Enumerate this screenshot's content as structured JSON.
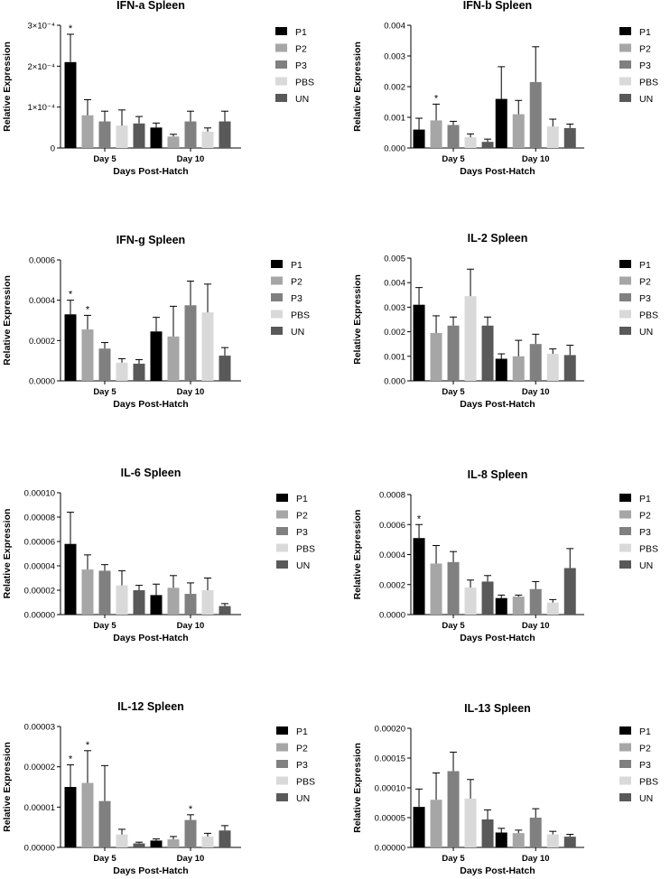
{
  "chart_data": [
    {
      "type": "bar",
      "title": "IFN-a Spleen",
      "xlabel": "Days Post-Hatch",
      "ylabel": "Relative Expression",
      "categories": [
        "Day 5",
        "Day 10"
      ],
      "ylim": [
        0,
        0.0003
      ],
      "ytick_values": [
        0,
        0.0001,
        0.0002,
        0.0003
      ],
      "ytick_labels": [
        "0",
        "1×10⁻⁴",
        "2×10⁻⁴",
        "3×10⁻⁴"
      ],
      "series": [
        {
          "name": "P1",
          "values": [
            0.00021,
            5e-05
          ],
          "errors": [
            6.8e-05,
            1.1e-05
          ]
        },
        {
          "name": "P2",
          "values": [
            8e-05,
            2.8e-05
          ],
          "errors": [
            3.8e-05,
            5.5e-06
          ]
        },
        {
          "name": "P3",
          "values": [
            6.5e-05,
            6.5e-05
          ],
          "errors": [
            2.5e-05,
            2.5e-05
          ]
        },
        {
          "name": "PBS",
          "values": [
            5.5e-05,
            4e-05
          ],
          "errors": [
            3.8e-05,
            9e-06
          ]
        },
        {
          "name": "UN",
          "values": [
            6e-05,
            6.5e-05
          ],
          "errors": [
            1.7e-05,
            2.5e-05
          ]
        }
      ],
      "annotations": [
        {
          "series": "P1",
          "category": "Day 5",
          "text": "*"
        }
      ]
    },
    {
      "type": "bar",
      "title": "IFN-b Spleen",
      "xlabel": "Days Post-Hatch",
      "ylabel": "Relative Expression",
      "categories": [
        "Day 5",
        "Day 10"
      ],
      "ylim": [
        0,
        0.004
      ],
      "ytick_values": [
        0,
        0.001,
        0.002,
        0.003,
        0.004
      ],
      "ytick_labels": [
        "0.000",
        "0.001",
        "0.002",
        "0.003",
        "0.004"
      ],
      "series": [
        {
          "name": "P1",
          "values": [
            0.0006,
            0.0016
          ],
          "errors": [
            0.00037,
            0.00105
          ]
        },
        {
          "name": "P2",
          "values": [
            0.0009,
            0.0011
          ],
          "errors": [
            0.00053,
            0.00045
          ]
        },
        {
          "name": "P3",
          "values": [
            0.00075,
            0.00215
          ],
          "errors": [
            0.00012,
            0.00115
          ]
        },
        {
          "name": "PBS",
          "values": [
            0.00035,
            0.0007
          ],
          "errors": [
            0.00011,
            0.00024
          ]
        },
        {
          "name": "UN",
          "values": [
            0.0002,
            0.00065
          ],
          "errors": [
            9e-05,
            0.00013
          ]
        }
      ],
      "annotations": [
        {
          "series": "P2",
          "category": "Day 5",
          "text": "*"
        }
      ]
    },
    {
      "type": "bar",
      "title": "IFN-g Spleen",
      "xlabel": "Days Post-Hatch",
      "ylabel": "Relative Expression",
      "categories": [
        "Day 5",
        "Day 10"
      ],
      "ylim": [
        0,
        0.0006
      ],
      "ytick_values": [
        0,
        0.0002,
        0.0004,
        0.0006
      ],
      "ytick_labels": [
        "0.0000",
        "0.0002",
        "0.0004",
        "0.0006"
      ],
      "series": [
        {
          "name": "P1",
          "values": [
            0.00033,
            0.000245
          ],
          "errors": [
            7e-05,
            7e-05
          ]
        },
        {
          "name": "P2",
          "values": [
            0.000255,
            0.00022
          ],
          "errors": [
            7e-05,
            0.00015
          ]
        },
        {
          "name": "P3",
          "values": [
            0.00016,
            0.000375
          ],
          "errors": [
            3e-05,
            0.00012
          ]
        },
        {
          "name": "PBS",
          "values": [
            9e-05,
            0.00034
          ],
          "errors": [
            2e-05,
            0.00014
          ]
        },
        {
          "name": "UN",
          "values": [
            8.5e-05,
            0.000125
          ],
          "errors": [
            2e-05,
            4e-05
          ]
        }
      ],
      "annotations": [
        {
          "series": "P1",
          "category": "Day 5",
          "text": "*"
        },
        {
          "series": "P2",
          "category": "Day 5",
          "text": "*"
        }
      ]
    },
    {
      "type": "bar",
      "title": "IL-2 Spleen",
      "xlabel": "Days Post-Hatch",
      "ylabel": "Relative Expression",
      "categories": [
        "Day 5",
        "Day 10"
      ],
      "ylim": [
        0,
        0.005
      ],
      "ytick_values": [
        0,
        0.001,
        0.002,
        0.003,
        0.004,
        0.005
      ],
      "ytick_labels": [
        "0.000",
        "0.001",
        "0.002",
        "0.003",
        "0.004",
        "0.005"
      ],
      "series": [
        {
          "name": "P1",
          "values": [
            0.0031,
            0.0009
          ],
          "errors": [
            0.0007,
            0.0002
          ]
        },
        {
          "name": "P2",
          "values": [
            0.00195,
            0.001
          ],
          "errors": [
            0.0007,
            0.00065
          ]
        },
        {
          "name": "P3",
          "values": [
            0.00225,
            0.0015
          ],
          "errors": [
            0.00035,
            0.0004
          ]
        },
        {
          "name": "PBS",
          "values": [
            0.00345,
            0.0011
          ],
          "errors": [
            0.0011,
            0.0002
          ]
        },
        {
          "name": "UN",
          "values": [
            0.00225,
            0.00105
          ],
          "errors": [
            0.00035,
            0.0004
          ]
        }
      ],
      "annotations": []
    },
    {
      "type": "bar",
      "title": "IL-6 Spleen",
      "xlabel": "Days Post-Hatch",
      "ylabel": "Relative Expression",
      "categories": [
        "Day 5",
        "Day 10"
      ],
      "ylim": [
        0,
        0.0001
      ],
      "ytick_values": [
        0,
        2e-05,
        4e-05,
        6e-05,
        8e-05,
        0.0001
      ],
      "ytick_labels": [
        "0.00000",
        "0.00002",
        "0.00004",
        "0.00006",
        "0.00008",
        "0.00010"
      ],
      "series": [
        {
          "name": "P1",
          "values": [
            5.8e-05,
            1.6e-05
          ],
          "errors": [
            2.6e-05,
            9e-06
          ]
        },
        {
          "name": "P2",
          "values": [
            3.7e-05,
            2.2e-05
          ],
          "errors": [
            1.2e-05,
            1e-05
          ]
        },
        {
          "name": "P3",
          "values": [
            3.6e-05,
            1.7e-05
          ],
          "errors": [
            5e-06,
            9e-06
          ]
        },
        {
          "name": "PBS",
          "values": [
            2.4e-05,
            2e-05
          ],
          "errors": [
            1.2e-05,
            1e-05
          ]
        },
        {
          "name": "UN",
          "values": [
            2e-05,
            7e-06
          ],
          "errors": [
            4e-06,
            2e-06
          ]
        }
      ],
      "annotations": []
    },
    {
      "type": "bar",
      "title": "IL-8 Spleen",
      "xlabel": "Days Post-Hatch",
      "ylabel": "Relative Expression",
      "categories": [
        "Day 5",
        "Day 10"
      ],
      "ylim": [
        0,
        0.0008
      ],
      "ytick_values": [
        0,
        0.0002,
        0.0004,
        0.0006,
        0.0008
      ],
      "ytick_labels": [
        "0.0000",
        "0.0002",
        "0.0004",
        "0.0006",
        "0.0008"
      ],
      "series": [
        {
          "name": "P1",
          "values": [
            0.00051,
            0.00011
          ],
          "errors": [
            9e-05,
            2e-05
          ]
        },
        {
          "name": "P2",
          "values": [
            0.00034,
            0.00012
          ],
          "errors": [
            0.00012,
            1e-05
          ]
        },
        {
          "name": "P3",
          "values": [
            0.00035,
            0.00017
          ],
          "errors": [
            7e-05,
            5e-05
          ]
        },
        {
          "name": "PBS",
          "values": [
            0.00018,
            8e-05
          ],
          "errors": [
            5e-05,
            2e-05
          ]
        },
        {
          "name": "UN",
          "values": [
            0.00022,
            0.00031
          ],
          "errors": [
            4e-05,
            0.00013
          ]
        }
      ],
      "annotations": [
        {
          "series": "P1",
          "category": "Day 5",
          "text": "*"
        }
      ]
    },
    {
      "type": "bar",
      "title": "IL-12 Spleen",
      "xlabel": "Days Post-Hatch",
      "ylabel": "Relative Expression",
      "categories": [
        "Day 5",
        "Day 10"
      ],
      "ylim": [
        0,
        3e-05
      ],
      "ytick_values": [
        0,
        1e-05,
        2e-05,
        3e-05
      ],
      "ytick_labels": [
        "0.00000",
        "0.00001",
        "0.00002",
        "0.00003"
      ],
      "series": [
        {
          "name": "P1",
          "values": [
            1.5e-05,
            1.7e-06
          ],
          "errors": [
            5.5e-06,
            4e-07
          ]
        },
        {
          "name": "P2",
          "values": [
            1.6e-05,
            2e-06
          ],
          "errors": [
            8e-06,
            7e-07
          ]
        },
        {
          "name": "P3",
          "values": [
            1.15e-05,
            6.8e-06
          ],
          "errors": [
            8.8e-06,
            1.3e-06
          ]
        },
        {
          "name": "PBS",
          "values": [
            3.2e-06,
            2.7e-06
          ],
          "errors": [
            1.3e-06,
            8e-07
          ]
        },
        {
          "name": "UN",
          "values": [
            1e-06,
            4.2e-06
          ],
          "errors": [
            3e-07,
            1.2e-06
          ]
        }
      ],
      "annotations": [
        {
          "series": "P1",
          "category": "Day 5",
          "text": "*"
        },
        {
          "series": "P2",
          "category": "Day 5",
          "text": "*"
        },
        {
          "series": "P3",
          "category": "Day 10",
          "text": "*"
        }
      ]
    },
    {
      "type": "bar",
      "title": "IL-13 Spleen",
      "xlabel": "Days Post-Hatch",
      "ylabel": "Relative Expression",
      "categories": [
        "Day 5",
        "Day 10"
      ],
      "ylim": [
        0,
        0.0002
      ],
      "ytick_values": [
        0,
        5e-05,
        0.0001,
        0.00015,
        0.0002
      ],
      "ytick_labels": [
        "0.00000",
        "0.00005",
        "0.00010",
        "0.00015",
        "0.00020"
      ],
      "series": [
        {
          "name": "P1",
          "values": [
            6.8e-05,
            2.5e-05
          ],
          "errors": [
            3e-05,
            7e-06
          ]
        },
        {
          "name": "P2",
          "values": [
            8e-05,
            2.4e-05
          ],
          "errors": [
            4.5e-05,
            5e-06
          ]
        },
        {
          "name": "P3",
          "values": [
            0.000128,
            5e-05
          ],
          "errors": [
            3.2e-05,
            1.5e-05
          ]
        },
        {
          "name": "PBS",
          "values": [
            8.2e-05,
            2.2e-05
          ],
          "errors": [
            3.2e-05,
            5e-06
          ]
        },
        {
          "name": "UN",
          "values": [
            4.7e-05,
            1.8e-05
          ],
          "errors": [
            1.6e-05,
            4e-06
          ]
        }
      ],
      "annotations": []
    }
  ],
  "series_colors": {
    "P1": "#000000",
    "P2": "#a6a6a6",
    "P3": "#808080",
    "PBS": "#d9d9d9",
    "UN": "#595959"
  }
}
